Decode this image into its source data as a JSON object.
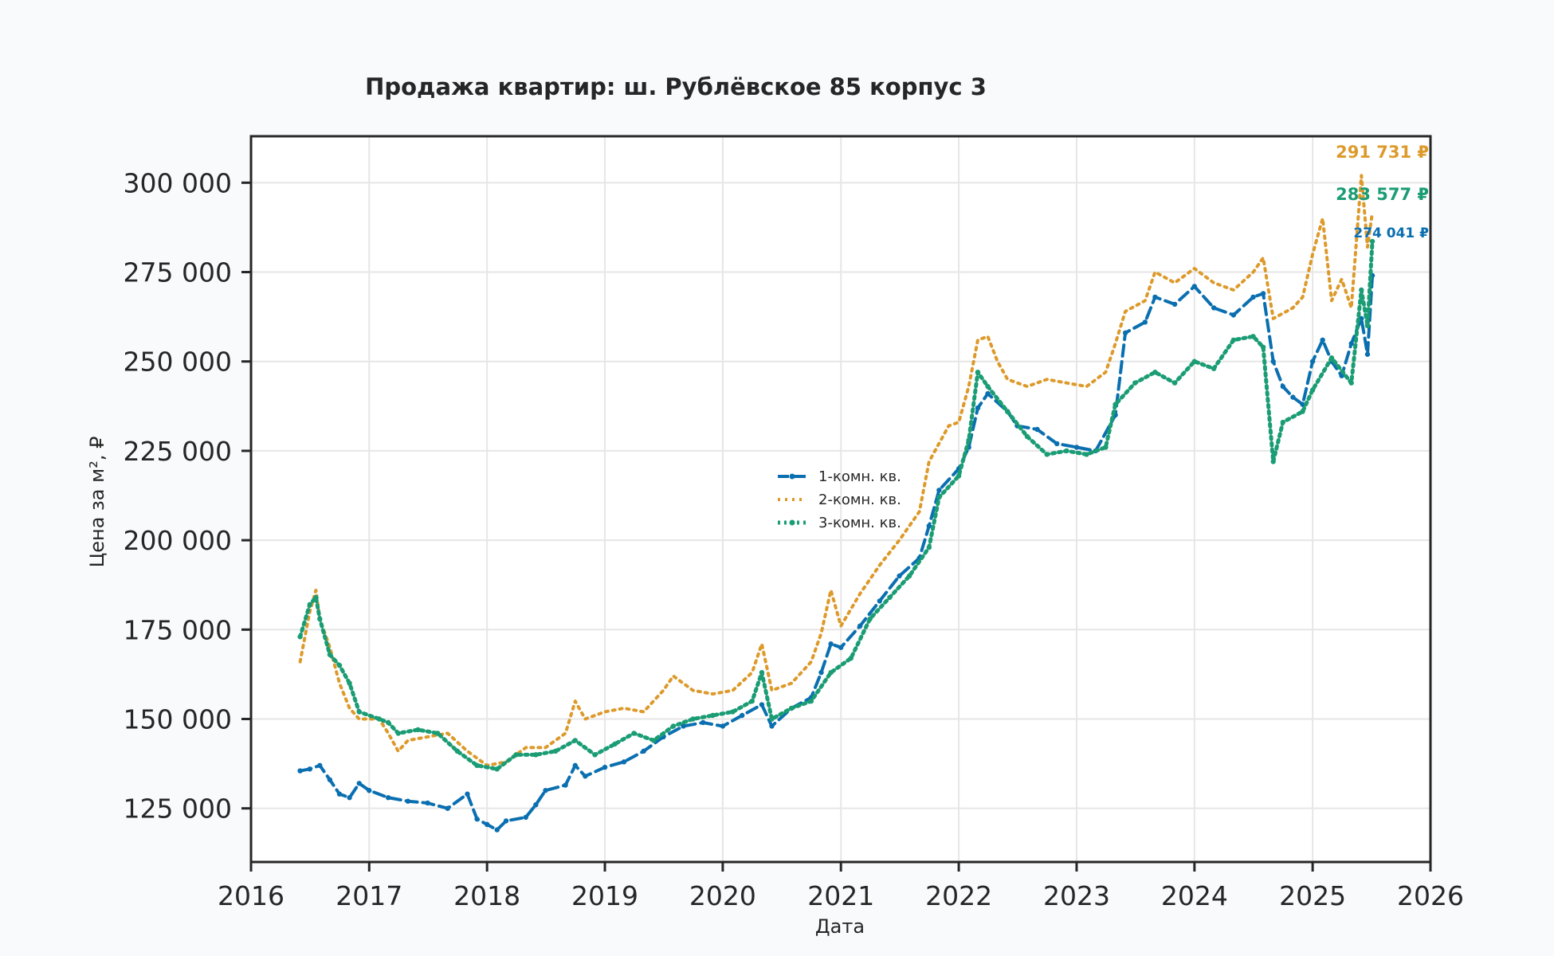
{
  "colors": {
    "background": "#f8fafc",
    "plot_background": "#ffffff",
    "axis": "#262626",
    "grid": "#e6e6e6",
    "series_1": "#0a6fb0",
    "series_2": "#dd9a2b",
    "series_3": "#1a9c74"
  },
  "chart_data": {
    "type": "line",
    "title": "Продажа квартир: ш. Рублёвское 85 корпус 3",
    "xlabel": "Дата",
    "ylabel": "Цена за м², ₽",
    "xlim": [
      "2016-01-01",
      "2026-01-01"
    ],
    "ylim": [
      110000,
      313000
    ],
    "x_ticks": [
      "2016",
      "2017",
      "2018",
      "2019",
      "2020",
      "2021",
      "2022",
      "2023",
      "2024",
      "2025",
      "2026"
    ],
    "y_ticks": [
      125000,
      150000,
      175000,
      200000,
      225000,
      250000,
      275000,
      300000
    ],
    "y_tick_labels": [
      "125 000",
      "150 000",
      "175 000",
      "200 000",
      "225 000",
      "250 000",
      "275 000",
      "300 000"
    ],
    "grid": true,
    "legend_position": "center",
    "series": [
      {
        "name": "1-комн. кв.",
        "color_key": "series_1",
        "style": "dashed-markers",
        "end_label": "274 041 ₽",
        "points": [
          [
            "2016-06-01",
            135500
          ],
          [
            "2016-07-01",
            136000
          ],
          [
            "2016-08-01",
            137000
          ],
          [
            "2016-09-01",
            133000
          ],
          [
            "2016-10-01",
            129000
          ],
          [
            "2016-11-01",
            128000
          ],
          [
            "2016-12-01",
            132000
          ],
          [
            "2017-01-01",
            130000
          ],
          [
            "2017-03-01",
            128000
          ],
          [
            "2017-05-01",
            127000
          ],
          [
            "2017-07-01",
            126500
          ],
          [
            "2017-09-01",
            125000
          ],
          [
            "2017-11-01",
            129000
          ],
          [
            "2017-12-01",
            122000
          ],
          [
            "2018-01-01",
            120500
          ],
          [
            "2018-02-01",
            119000
          ],
          [
            "2018-03-01",
            121500
          ],
          [
            "2018-05-01",
            122500
          ],
          [
            "2018-06-01",
            126000
          ],
          [
            "2018-07-01",
            130000
          ],
          [
            "2018-09-01",
            131500
          ],
          [
            "2018-10-01",
            137000
          ],
          [
            "2018-11-01",
            134000
          ],
          [
            "2019-01-01",
            136500
          ],
          [
            "2019-03-01",
            138000
          ],
          [
            "2019-05-01",
            141000
          ],
          [
            "2019-07-01",
            145000
          ],
          [
            "2019-09-01",
            148000
          ],
          [
            "2019-11-01",
            149000
          ],
          [
            "2020-01-01",
            148000
          ],
          [
            "2020-03-01",
            151000
          ],
          [
            "2020-05-01",
            154000
          ],
          [
            "2020-06-01",
            148000
          ],
          [
            "2020-08-01",
            153000
          ],
          [
            "2020-10-01",
            156000
          ],
          [
            "2020-11-01",
            163000
          ],
          [
            "2020-12-01",
            171000
          ],
          [
            "2021-01-01",
            170000
          ],
          [
            "2021-03-01",
            176000
          ],
          [
            "2021-05-01",
            183000
          ],
          [
            "2021-07-01",
            190000
          ],
          [
            "2021-09-01",
            195000
          ],
          [
            "2021-10-01",
            204000
          ],
          [
            "2021-11-01",
            214000
          ],
          [
            "2022-01-01",
            220000
          ],
          [
            "2022-02-01",
            226000
          ],
          [
            "2022-03-01",
            237000
          ],
          [
            "2022-04-01",
            241000
          ],
          [
            "2022-06-01",
            236000
          ],
          [
            "2022-07-01",
            232000
          ],
          [
            "2022-09-01",
            231000
          ],
          [
            "2022-11-01",
            227000
          ],
          [
            "2023-01-01",
            226000
          ],
          [
            "2023-03-01",
            225000
          ],
          [
            "2023-05-01",
            235000
          ],
          [
            "2023-06-01",
            258000
          ],
          [
            "2023-08-01",
            261000
          ],
          [
            "2023-09-01",
            268000
          ],
          [
            "2023-11-01",
            266000
          ],
          [
            "2024-01-01",
            271000
          ],
          [
            "2024-03-01",
            265000
          ],
          [
            "2024-05-01",
            263000
          ],
          [
            "2024-07-01",
            268000
          ],
          [
            "2024-08-01",
            269000
          ],
          [
            "2024-09-01",
            250000
          ],
          [
            "2024-10-01",
            243000
          ],
          [
            "2024-11-01",
            240000
          ],
          [
            "2024-12-01",
            238000
          ],
          [
            "2025-01-01",
            250000
          ],
          [
            "2025-02-01",
            256000
          ],
          [
            "2025-03-01",
            250000
          ],
          [
            "2025-04-01",
            246000
          ],
          [
            "2025-05-01",
            255000
          ],
          [
            "2025-06-01",
            262000
          ],
          [
            "2025-06-20",
            252000
          ],
          [
            "2025-07-05",
            274041
          ]
        ]
      },
      {
        "name": "2-комн. кв.",
        "color_key": "series_2",
        "style": "dotted",
        "end_label": "291 731 ₽",
        "points": [
          [
            "2016-06-01",
            166000
          ],
          [
            "2016-07-01",
            180000
          ],
          [
            "2016-07-20",
            186000
          ],
          [
            "2016-08-01",
            178000
          ],
          [
            "2016-09-01",
            170000
          ],
          [
            "2016-10-01",
            160000
          ],
          [
            "2016-11-01",
            153000
          ],
          [
            "2016-12-01",
            150000
          ],
          [
            "2017-02-01",
            150000
          ],
          [
            "2017-03-01",
            146000
          ],
          [
            "2017-04-01",
            141000
          ],
          [
            "2017-05-01",
            144000
          ],
          [
            "2017-07-01",
            145000
          ],
          [
            "2017-09-01",
            146000
          ],
          [
            "2017-11-01",
            141000
          ],
          [
            "2018-01-01",
            137000
          ],
          [
            "2018-03-01",
            138000
          ],
          [
            "2018-05-01",
            142000
          ],
          [
            "2018-07-01",
            142000
          ],
          [
            "2018-09-01",
            146000
          ],
          [
            "2018-10-01",
            155000
          ],
          [
            "2018-11-01",
            150000
          ],
          [
            "2019-01-01",
            152000
          ],
          [
            "2019-03-01",
            153000
          ],
          [
            "2019-05-01",
            152000
          ],
          [
            "2019-07-01",
            158000
          ],
          [
            "2019-08-01",
            162000
          ],
          [
            "2019-10-01",
            158000
          ],
          [
            "2019-12-01",
            157000
          ],
          [
            "2020-02-01",
            158000
          ],
          [
            "2020-04-01",
            163000
          ],
          [
            "2020-05-01",
            171000
          ],
          [
            "2020-06-01",
            158000
          ],
          [
            "2020-08-01",
            160000
          ],
          [
            "2020-10-01",
            166000
          ],
          [
            "2020-11-01",
            174000
          ],
          [
            "2020-12-01",
            186000
          ],
          [
            "2021-01-01",
            176000
          ],
          [
            "2021-03-01",
            185000
          ],
          [
            "2021-05-01",
            193000
          ],
          [
            "2021-07-01",
            200000
          ],
          [
            "2021-09-01",
            208000
          ],
          [
            "2021-10-01",
            222000
          ],
          [
            "2021-12-01",
            232000
          ],
          [
            "2022-01-01",
            233000
          ],
          [
            "2022-02-01",
            243000
          ],
          [
            "2022-03-01",
            256000
          ],
          [
            "2022-04-01",
            257000
          ],
          [
            "2022-05-01",
            250000
          ],
          [
            "2022-06-01",
            245000
          ],
          [
            "2022-08-01",
            243000
          ],
          [
            "2022-10-01",
            245000
          ],
          [
            "2022-12-01",
            244000
          ],
          [
            "2023-02-01",
            243000
          ],
          [
            "2023-04-01",
            247000
          ],
          [
            "2023-05-01",
            255000
          ],
          [
            "2023-06-01",
            264000
          ],
          [
            "2023-08-01",
            267000
          ],
          [
            "2023-09-01",
            275000
          ],
          [
            "2023-11-01",
            272000
          ],
          [
            "2024-01-01",
            276000
          ],
          [
            "2024-03-01",
            272000
          ],
          [
            "2024-05-01",
            270000
          ],
          [
            "2024-07-01",
            275000
          ],
          [
            "2024-08-01",
            279000
          ],
          [
            "2024-09-01",
            262000
          ],
          [
            "2024-11-01",
            265000
          ],
          [
            "2024-12-01",
            268000
          ],
          [
            "2025-01-01",
            280000
          ],
          [
            "2025-02-01",
            290000
          ],
          [
            "2025-03-01",
            267000
          ],
          [
            "2025-04-01",
            273000
          ],
          [
            "2025-05-01",
            265000
          ],
          [
            "2025-06-01",
            302000
          ],
          [
            "2025-06-20",
            282000
          ],
          [
            "2025-07-05",
            291731
          ]
        ]
      },
      {
        "name": "3-комн. кв.",
        "color_key": "series_3",
        "style": "dotted-markers",
        "end_label": "283 577 ₽",
        "points": [
          [
            "2016-06-01",
            173000
          ],
          [
            "2016-07-01",
            182000
          ],
          [
            "2016-07-20",
            184000
          ],
          [
            "2016-08-01",
            178000
          ],
          [
            "2016-09-01",
            168000
          ],
          [
            "2016-10-01",
            165000
          ],
          [
            "2016-11-01",
            160000
          ],
          [
            "2016-12-01",
            152000
          ],
          [
            "2017-02-01",
            150000
          ],
          [
            "2017-03-01",
            149000
          ],
          [
            "2017-04-01",
            146000
          ],
          [
            "2017-06-01",
            147000
          ],
          [
            "2017-08-01",
            146000
          ],
          [
            "2017-10-01",
            141000
          ],
          [
            "2017-12-01",
            137000
          ],
          [
            "2018-02-01",
            136000
          ],
          [
            "2018-04-01",
            140000
          ],
          [
            "2018-06-01",
            140000
          ],
          [
            "2018-08-01",
            141000
          ],
          [
            "2018-10-01",
            144000
          ],
          [
            "2018-12-01",
            140000
          ],
          [
            "2019-02-01",
            143000
          ],
          [
            "2019-04-01",
            146000
          ],
          [
            "2019-06-01",
            144000
          ],
          [
            "2019-08-01",
            148000
          ],
          [
            "2019-10-01",
            150000
          ],
          [
            "2019-12-01",
            151000
          ],
          [
            "2020-02-01",
            152000
          ],
          [
            "2020-04-01",
            155000
          ],
          [
            "2020-05-01",
            163000
          ],
          [
            "2020-06-01",
            150000
          ],
          [
            "2020-08-01",
            153000
          ],
          [
            "2020-10-01",
            155000
          ],
          [
            "2020-12-01",
            163000
          ],
          [
            "2021-02-01",
            167000
          ],
          [
            "2021-04-01",
            178000
          ],
          [
            "2021-06-01",
            184000
          ],
          [
            "2021-08-01",
            190000
          ],
          [
            "2021-10-01",
            198000
          ],
          [
            "2021-11-01",
            212000
          ],
          [
            "2022-01-01",
            218000
          ],
          [
            "2022-02-01",
            228000
          ],
          [
            "2022-03-01",
            247000
          ],
          [
            "2022-04-01",
            243000
          ],
          [
            "2022-06-01",
            236000
          ],
          [
            "2022-08-01",
            229000
          ],
          [
            "2022-10-01",
            224000
          ],
          [
            "2022-12-01",
            225000
          ],
          [
            "2023-02-01",
            224000
          ],
          [
            "2023-04-01",
            226000
          ],
          [
            "2023-05-01",
            238000
          ],
          [
            "2023-07-01",
            244000
          ],
          [
            "2023-09-01",
            247000
          ],
          [
            "2023-11-01",
            244000
          ],
          [
            "2024-01-01",
            250000
          ],
          [
            "2024-03-01",
            248000
          ],
          [
            "2024-05-01",
            256000
          ],
          [
            "2024-07-01",
            257000
          ],
          [
            "2024-08-01",
            254000
          ],
          [
            "2024-09-01",
            222000
          ],
          [
            "2024-10-01",
            233000
          ],
          [
            "2024-12-01",
            236000
          ],
          [
            "2025-01-01",
            242000
          ],
          [
            "2025-03-01",
            251000
          ],
          [
            "2025-05-01",
            244000
          ],
          [
            "2025-06-01",
            270000
          ],
          [
            "2025-06-20",
            260000
          ],
          [
            "2025-07-05",
            283577
          ]
        ]
      }
    ]
  }
}
